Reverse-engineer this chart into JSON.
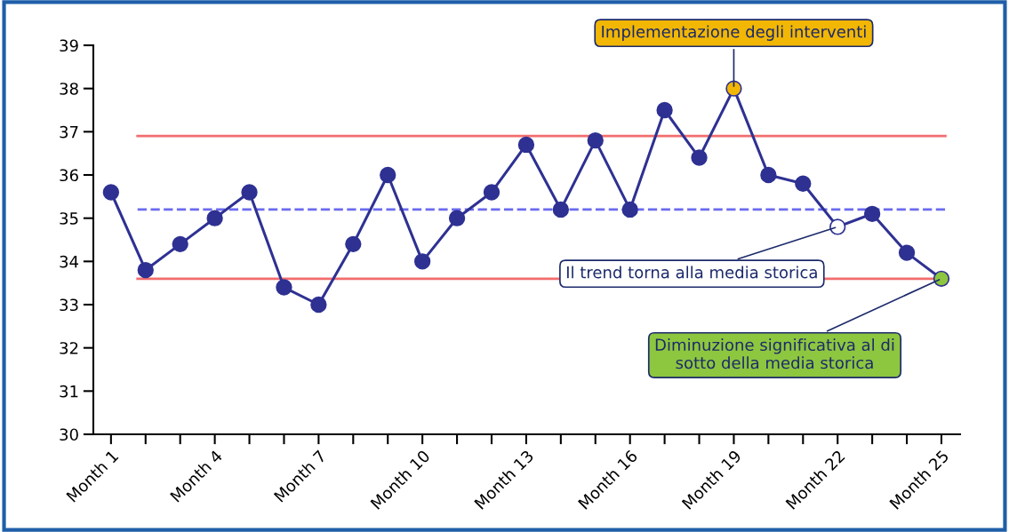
{
  "chart_data": {
    "type": "line",
    "categories": [
      "Month 1",
      null,
      null,
      "Month 4",
      null,
      null,
      "Month 7",
      null,
      null,
      "Month 10",
      null,
      null,
      "Month 13",
      null,
      null,
      "Month 16",
      null,
      null,
      "Month 19",
      null,
      null,
      "Month 22",
      null,
      null,
      "Month 25"
    ],
    "series": [
      {
        "color": "#2e3192",
        "values": [
          35.6,
          33.8,
          34.4,
          35.0,
          35.6,
          33.4,
          33.0,
          34.4,
          36.0,
          34.0,
          35.0,
          35.6,
          36.7,
          35.2,
          36.8,
          35.2,
          37.5,
          36.4,
          38.0,
          36.0,
          35.8,
          34.8,
          35.1,
          34.2,
          33.6
        ],
        "colors": [
          "#2e3192",
          "#2e3192",
          "#2e3192",
          "#2e3192",
          "#2e3192",
          "#2e3192",
          "#2e3192",
          "#2e3192",
          "#2e3192",
          "#2e3192",
          "#2e3192",
          "#2e3192",
          "#2e3192",
          "#2e3192",
          "#2e3192",
          "#2e3192",
          "#2e3192",
          "#2e3192",
          "#f2b705",
          "#2e3192",
          "#2e3192",
          "#ffffff",
          "#2e3192",
          "#2e3192",
          "#8dc63f"
        ]
      }
    ],
    "ylim": [
      30,
      39
    ],
    "yticks": [
      30,
      31,
      32,
      33,
      34,
      35,
      36,
      37,
      38,
      39
    ],
    "ref_lines": [
      {
        "axis": "y",
        "value": 36.9,
        "color": "#f26d6d",
        "line_style": "solid"
      },
      {
        "axis": "y",
        "value": 33.6,
        "color": "#f26d6d",
        "line_style": "solid"
      },
      {
        "axis": "y",
        "value": 35.2,
        "color": "#6b6bf0",
        "line_style": "dashed"
      }
    ],
    "annotations": [
      {
        "text": "Implementazione degli interventi",
        "x": "Month 19",
        "y": 38.0
      },
      {
        "text": "Il trend torna alla media storica",
        "x": "Month 22",
        "y": 34.8
      },
      {
        "text": "Diminuzione significativa al di\nsotto della media storica",
        "x": "Month 25",
        "y": 33.6
      }
    ],
    "marker": "circle",
    "line_style": "solid",
    "grid": false,
    "legend": false
  }
}
